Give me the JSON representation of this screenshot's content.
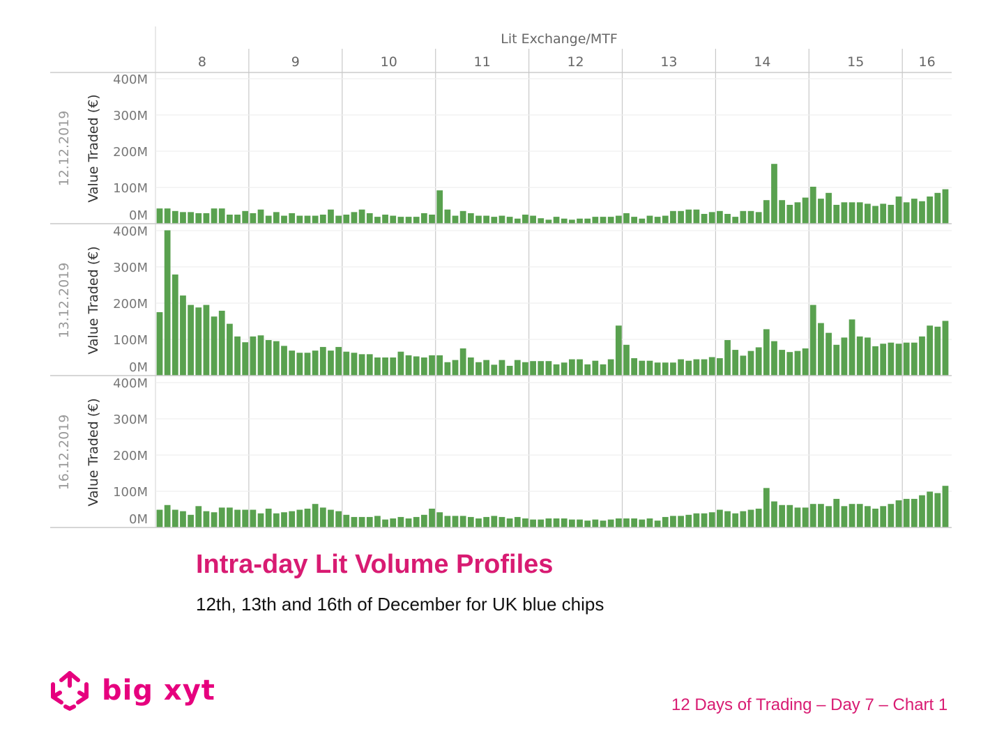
{
  "chart_data": {
    "type": "bar",
    "title": "Intra-day Lit Volume Profiles",
    "subtitle": "12th, 13th and 16th of December for UK blue chips",
    "column_header": "Lit Exchange/MTF",
    "hours": [
      "8",
      "9",
      "10",
      "11",
      "12",
      "13",
      "14",
      "15",
      "16"
    ],
    "bins_per_hour": 12,
    "ylabel": "Value Traded (€)",
    "yticks": [
      "0M",
      "100M",
      "200M",
      "300M",
      "400M"
    ],
    "ylim": [
      0,
      400
    ],
    "unit": "M EUR",
    "bar_color": "#59a14f",
    "panels": [
      {
        "date": "12.12.2019",
        "values": [
          42,
          42,
          35,
          32,
          32,
          29,
          29,
          42,
          42,
          25,
          25,
          35,
          29,
          39,
          22,
          32,
          22,
          29,
          22,
          22,
          22,
          25,
          39,
          22,
          25,
          32,
          39,
          29,
          19,
          25,
          22,
          19,
          19,
          19,
          29,
          25,
          92,
          39,
          22,
          35,
          29,
          22,
          22,
          19,
          22,
          19,
          14,
          25,
          22,
          15,
          11,
          19,
          14,
          11,
          14,
          14,
          19,
          19,
          19,
          22,
          29,
          19,
          14,
          22,
          19,
          22,
          35,
          35,
          39,
          39,
          27,
          32,
          35,
          27,
          19,
          35,
          35,
          32,
          65,
          165,
          65,
          52,
          59,
          72,
          102,
          69,
          85,
          52,
          59,
          59,
          59,
          55,
          49,
          55,
          52,
          75,
          59,
          69,
          62,
          75,
          85,
          95
        ]
      },
      {
        "date": "13.12.2019",
        "values": [
          175,
          401,
          279,
          221,
          195,
          188,
          195,
          163,
          179,
          143,
          108,
          92,
          108,
          111,
          98,
          95,
          82,
          69,
          63,
          63,
          69,
          79,
          69,
          79,
          66,
          63,
          59,
          59,
          50,
          50,
          50,
          66,
          56,
          53,
          50,
          56,
          56,
          37,
          43,
          75,
          50,
          37,
          43,
          30,
          43,
          27,
          43,
          37,
          40,
          40,
          40,
          31,
          36,
          45,
          45,
          31,
          41,
          31,
          45,
          138,
          85,
          48,
          41,
          41,
          36,
          36,
          36,
          45,
          41,
          45,
          45,
          51,
          48,
          98,
          71,
          55,
          68,
          78,
          128,
          95,
          71,
          65,
          68,
          75,
          195,
          145,
          118,
          85,
          105,
          155,
          108,
          105,
          81,
          88,
          91,
          88,
          91,
          91,
          108,
          138,
          135,
          151
        ]
      },
      {
        "date": "16.12.2019",
        "values": [
          49,
          62,
          49,
          45,
          35,
          59,
          45,
          42,
          55,
          55,
          49,
          49,
          49,
          39,
          52,
          39,
          42,
          45,
          49,
          52,
          65,
          55,
          49,
          45,
          35,
          29,
          29,
          29,
          32,
          22,
          25,
          29,
          25,
          29,
          35,
          52,
          42,
          32,
          32,
          32,
          29,
          25,
          29,
          32,
          29,
          25,
          29,
          25,
          22,
          22,
          25,
          25,
          25,
          22,
          22,
          19,
          22,
          19,
          22,
          25,
          25,
          25,
          22,
          25,
          19,
          29,
          32,
          32,
          35,
          39,
          39,
          42,
          49,
          45,
          39,
          45,
          49,
          52,
          109,
          72,
          62,
          62,
          55,
          55,
          65,
          65,
          59,
          79,
          59,
          65,
          65,
          59,
          52,
          59,
          65,
          75,
          79,
          79,
          89,
          99,
          95,
          115
        ]
      }
    ]
  },
  "footer": "12 Days of Trading – Day 7 – Chart 1",
  "logo": {
    "text": "big xyt",
    "color": "#e6007e"
  }
}
